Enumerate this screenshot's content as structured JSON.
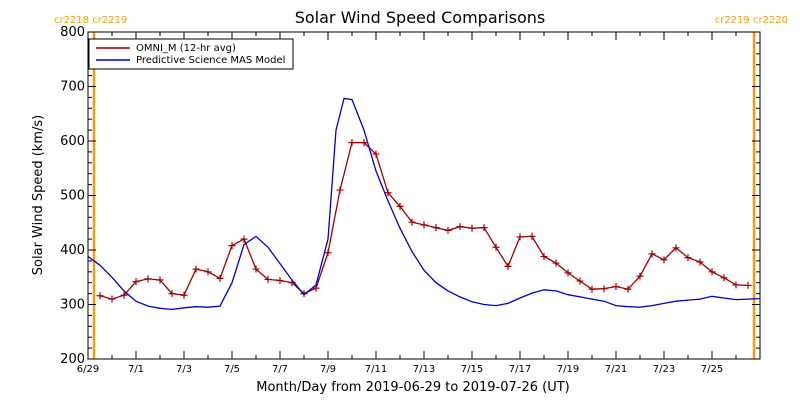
{
  "chart_data": {
    "type": "line",
    "title": "Solar Wind Speed Comparisons",
    "xlabel": "Month/Day from 2019-06-29 to 2019-07-26 (UT)",
    "ylabel": "Solar Wind Speed (km/s)",
    "ylim": [
      200,
      800
    ],
    "xlim": [
      "2019-06-29",
      "2019-07-27"
    ],
    "yticks": [
      200,
      300,
      400,
      500,
      600,
      700,
      800
    ],
    "xtick_labels": [
      "6/29",
      "7/1",
      "7/3",
      "7/5",
      "7/7",
      "7/9",
      "7/11",
      "7/13",
      "7/15",
      "7/17",
      "7/19",
      "7/21",
      "7/23",
      "7/25"
    ],
    "xtick_dates": [
      "2019-06-29",
      "2019-07-01",
      "2019-07-03",
      "2019-07-05",
      "2019-07-07",
      "2019-07-09",
      "2019-07-11",
      "2019-07-13",
      "2019-07-15",
      "2019-07-17",
      "2019-07-19",
      "2019-07-21",
      "2019-07-23",
      "2019-07-25"
    ],
    "grid": false,
    "legend_position": "top-left",
    "carrington_labels": {
      "left": "cr2218 cr2219",
      "right": "cr2219 cr2220",
      "left_line_date": "2019-06-29 06:00",
      "right_line_date": "2019-07-26 18:00",
      "color": "#f39c12"
    },
    "series": [
      {
        "name": "OMNI_M (12-hr avg)",
        "color": "#a00000",
        "markers": true,
        "points": [
          [
            "2019-06-29 12:00",
            316
          ],
          [
            "2019-06-30 00:00",
            310
          ],
          [
            "2019-06-30 12:00",
            317
          ],
          [
            "2019-07-01 00:00",
            342
          ],
          [
            "2019-07-01 12:00",
            347
          ],
          [
            "2019-07-02 00:00",
            345
          ],
          [
            "2019-07-02 12:00",
            320
          ],
          [
            "2019-07-03 00:00",
            317
          ],
          [
            "2019-07-03 12:00",
            365
          ],
          [
            "2019-07-04 00:00",
            360
          ],
          [
            "2019-07-04 12:00",
            348
          ],
          [
            "2019-07-05 00:00",
            408
          ],
          [
            "2019-07-05 12:00",
            420
          ],
          [
            "2019-07-06 00:00",
            365
          ],
          [
            "2019-07-06 12:00",
            346
          ],
          [
            "2019-07-07 00:00",
            344
          ],
          [
            "2019-07-07 12:00",
            340
          ],
          [
            "2019-07-08 00:00",
            320
          ],
          [
            "2019-07-08 12:00",
            330
          ],
          [
            "2019-07-09 00:00",
            395
          ],
          [
            "2019-07-09 12:00",
            510
          ],
          [
            "2019-07-10 00:00",
            597
          ],
          [
            "2019-07-10 12:00",
            597
          ],
          [
            "2019-07-11 00:00",
            576
          ],
          [
            "2019-07-11 12:00",
            505
          ],
          [
            "2019-07-12 00:00",
            480
          ],
          [
            "2019-07-12 12:00",
            451
          ],
          [
            "2019-07-13 00:00",
            446
          ],
          [
            "2019-07-13 12:00",
            441
          ],
          [
            "2019-07-14 00:00",
            436
          ],
          [
            "2019-07-14 12:00",
            443
          ],
          [
            "2019-07-15 00:00",
            440
          ],
          [
            "2019-07-15 12:00",
            441
          ],
          [
            "2019-07-16 00:00",
            405
          ],
          [
            "2019-07-16 12:00",
            370
          ],
          [
            "2019-07-17 00:00",
            424
          ],
          [
            "2019-07-17 12:00",
            425
          ],
          [
            "2019-07-18 00:00",
            388
          ],
          [
            "2019-07-18 12:00",
            376
          ],
          [
            "2019-07-19 00:00",
            358
          ],
          [
            "2019-07-19 12:00",
            343
          ],
          [
            "2019-07-20 00:00",
            328
          ],
          [
            "2019-07-20 12:00",
            329
          ],
          [
            "2019-07-21 00:00",
            333
          ],
          [
            "2019-07-21 12:00",
            328
          ],
          [
            "2019-07-22 00:00",
            352
          ],
          [
            "2019-07-22 12:00",
            393
          ],
          [
            "2019-07-23 00:00",
            382
          ],
          [
            "2019-07-23 12:00",
            404
          ],
          [
            "2019-07-24 00:00",
            386
          ],
          [
            "2019-07-24 12:00",
            378
          ],
          [
            "2019-07-25 00:00",
            360
          ],
          [
            "2019-07-25 12:00",
            349
          ],
          [
            "2019-07-26 00:00",
            336
          ],
          [
            "2019-07-26 12:00",
            335
          ]
        ]
      },
      {
        "name": "Predictive Science MAS Model",
        "color": "#0000cc",
        "markers": false,
        "points": [
          [
            "2019-06-29 00:00",
            388
          ],
          [
            "2019-06-29 12:00",
            372
          ],
          [
            "2019-06-30 00:00",
            350
          ],
          [
            "2019-06-30 12:00",
            325
          ],
          [
            "2019-07-01 00:00",
            306
          ],
          [
            "2019-07-01 12:00",
            297
          ],
          [
            "2019-07-02 00:00",
            293
          ],
          [
            "2019-07-02 12:00",
            291
          ],
          [
            "2019-07-03 00:00",
            294
          ],
          [
            "2019-07-03 12:00",
            296
          ],
          [
            "2019-07-04 00:00",
            295
          ],
          [
            "2019-07-04 12:00",
            297
          ],
          [
            "2019-07-05 00:00",
            340
          ],
          [
            "2019-07-05 12:00",
            410
          ],
          [
            "2019-07-06 00:00",
            425
          ],
          [
            "2019-07-06 12:00",
            405
          ],
          [
            "2019-07-07 00:00",
            375
          ],
          [
            "2019-07-07 12:00",
            345
          ],
          [
            "2019-07-08 00:00",
            318
          ],
          [
            "2019-07-08 12:00",
            336
          ],
          [
            "2019-07-09 00:00",
            420
          ],
          [
            "2019-07-09 08:00",
            620
          ],
          [
            "2019-07-09 16:00",
            678
          ],
          [
            "2019-07-10 00:00",
            676
          ],
          [
            "2019-07-10 12:00",
            620
          ],
          [
            "2019-07-11 00:00",
            545
          ],
          [
            "2019-07-11 12:00",
            490
          ],
          [
            "2019-07-12 00:00",
            440
          ],
          [
            "2019-07-12 12:00",
            397
          ],
          [
            "2019-07-13 00:00",
            363
          ],
          [
            "2019-07-13 12:00",
            340
          ],
          [
            "2019-07-14 00:00",
            325
          ],
          [
            "2019-07-14 12:00",
            314
          ],
          [
            "2019-07-15 00:00",
            305
          ],
          [
            "2019-07-15 12:00",
            300
          ],
          [
            "2019-07-16 00:00",
            298
          ],
          [
            "2019-07-16 12:00",
            302
          ],
          [
            "2019-07-17 00:00",
            312
          ],
          [
            "2019-07-17 12:00",
            321
          ],
          [
            "2019-07-18 00:00",
            327
          ],
          [
            "2019-07-18 12:00",
            325
          ],
          [
            "2019-07-19 00:00",
            318
          ],
          [
            "2019-07-19 12:00",
            314
          ],
          [
            "2019-07-20 00:00",
            310
          ],
          [
            "2019-07-20 12:00",
            306
          ],
          [
            "2019-07-21 00:00",
            298
          ],
          [
            "2019-07-21 12:00",
            296
          ],
          [
            "2019-07-22 00:00",
            295
          ],
          [
            "2019-07-22 12:00",
            298
          ],
          [
            "2019-07-23 00:00",
            302
          ],
          [
            "2019-07-23 12:00",
            306
          ],
          [
            "2019-07-24 00:00",
            308
          ],
          [
            "2019-07-24 12:00",
            310
          ],
          [
            "2019-07-25 00:00",
            315
          ],
          [
            "2019-07-25 12:00",
            312
          ],
          [
            "2019-07-26 00:00",
            309
          ],
          [
            "2019-07-26 12:00",
            310
          ],
          [
            "2019-07-27 00:00",
            311
          ]
        ]
      }
    ]
  }
}
